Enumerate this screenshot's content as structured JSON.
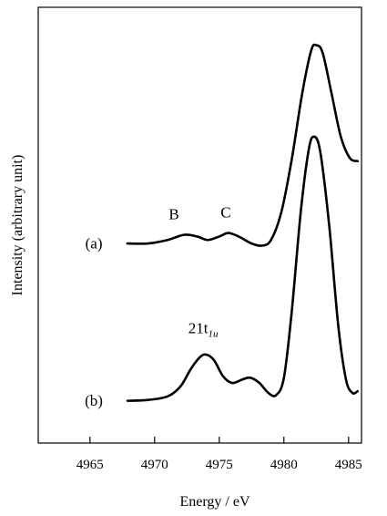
{
  "chart_data": {
    "type": "line",
    "title": "",
    "xlabel": "Energy / eV",
    "ylabel": "Intensity (arbitrary unit)",
    "xlim": [
      4961,
      4986
    ],
    "ylim": [
      0,
      1
    ],
    "x_ticks": [
      4965,
      4970,
      4975,
      4980,
      4985
    ],
    "x_tick_labels": [
      "4965",
      "4970",
      "4975",
      "4980",
      "4985"
    ],
    "y_ticks": [],
    "grid": false,
    "legend": "none",
    "series": [
      {
        "name": "(a)",
        "points": [
          [
            4967.9,
            0.458
          ],
          [
            4969.5,
            0.458
          ],
          [
            4971.0,
            0.466
          ],
          [
            4972.3,
            0.478
          ],
          [
            4973.3,
            0.474
          ],
          [
            4974.1,
            0.466
          ],
          [
            4975.0,
            0.474
          ],
          [
            4975.7,
            0.482
          ],
          [
            4976.5,
            0.474
          ],
          [
            4977.5,
            0.458
          ],
          [
            4978.3,
            0.453
          ],
          [
            4979.0,
            0.466
          ],
          [
            4979.8,
            0.53
          ],
          [
            4980.6,
            0.65
          ],
          [
            4981.4,
            0.8
          ],
          [
            4982.1,
            0.9
          ],
          [
            4982.5,
            0.913
          ],
          [
            4983.0,
            0.895
          ],
          [
            4983.7,
            0.8
          ],
          [
            4984.4,
            0.703
          ],
          [
            4985.1,
            0.654
          ],
          [
            4985.7,
            0.647
          ]
        ]
      },
      {
        "name": "(b)",
        "points": [
          [
            4967.9,
            0.097
          ],
          [
            4969.5,
            0.099
          ],
          [
            4971.0,
            0.107
          ],
          [
            4972.0,
            0.13
          ],
          [
            4972.8,
            0.17
          ],
          [
            4973.5,
            0.197
          ],
          [
            4974.0,
            0.203
          ],
          [
            4974.6,
            0.19
          ],
          [
            4975.3,
            0.153
          ],
          [
            4976.0,
            0.138
          ],
          [
            4976.8,
            0.146
          ],
          [
            4977.4,
            0.15
          ],
          [
            4978.1,
            0.138
          ],
          [
            4978.8,
            0.115
          ],
          [
            4979.4,
            0.11
          ],
          [
            4980.0,
            0.15
          ],
          [
            4980.6,
            0.3
          ],
          [
            4981.3,
            0.53
          ],
          [
            4981.9,
            0.67
          ],
          [
            4982.3,
            0.703
          ],
          [
            4982.8,
            0.67
          ],
          [
            4983.5,
            0.5
          ],
          [
            4984.2,
            0.27
          ],
          [
            4984.8,
            0.146
          ],
          [
            4985.3,
            0.115
          ],
          [
            4985.7,
            0.119
          ]
        ]
      }
    ],
    "annotations": [
      {
        "text": "B",
        "x": 4971.5,
        "y": 0.514
      },
      {
        "text": "C",
        "x": 4975.5,
        "y": 0.518
      },
      {
        "text": "(a)",
        "x": 4965.3,
        "y": 0.447
      },
      {
        "text": "(b)",
        "x": 4965.3,
        "y": 0.086
      }
    ],
    "annotation_21t1u": {
      "main": "21t",
      "sub": "1u",
      "x": 4972.6,
      "y": 0.252
    }
  }
}
